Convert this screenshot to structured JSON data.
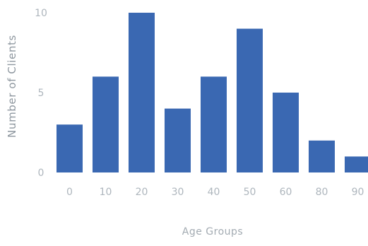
{
  "chart_data": {
    "type": "bar",
    "title": "",
    "xlabel": "Age Groups",
    "ylabel": "Number of Clients",
    "categories": [
      "0",
      "10",
      "20",
      "30",
      "40",
      "50",
      "60",
      "80",
      "90"
    ],
    "values": [
      3,
      6,
      10,
      4,
      6,
      9,
      5,
      2,
      1
    ],
    "ylim": [
      0,
      10
    ],
    "yticks": [
      "0",
      "5",
      "10"
    ],
    "grid": false,
    "bar_color": "#3a68b2"
  }
}
